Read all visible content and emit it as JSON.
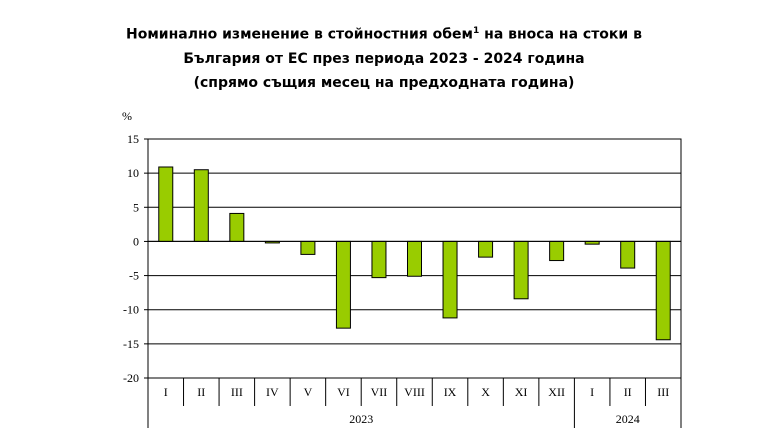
{
  "title": {
    "line1_a": "Номинално изменение в стойностния обем",
    "footnote_mark": "1",
    "line1_b": " на вноса на стоки в",
    "line2": "България от ЕС през периода 2023 - 2024 година",
    "line3": "(спрямо същия месец на предходната година)"
  },
  "chart_data": {
    "type": "bar",
    "unit_label": "%",
    "categories": [
      "I",
      "II",
      "III",
      "IV",
      "V",
      "VI",
      "VII",
      "VIII",
      "IX",
      "X",
      "XI",
      "XII",
      "I",
      "II",
      "III"
    ],
    "groups": [
      {
        "label": "2023",
        "count": 12
      },
      {
        "label": "2024",
        "count": 3
      }
    ],
    "values": [
      10.9,
      10.5,
      4.1,
      -0.2,
      -1.9,
      -12.7,
      -5.3,
      -5.1,
      -11.2,
      -2.3,
      -8.4,
      -2.8,
      -0.4,
      -3.9,
      -14.4
    ],
    "ylim": [
      -20,
      15
    ],
    "yticks": [
      15,
      10,
      5,
      0,
      -5,
      -10,
      -15,
      -20
    ],
    "grid": true,
    "colors": {
      "bar": "#99cc00",
      "bar_border": "#000000",
      "grid": "#000000"
    }
  }
}
